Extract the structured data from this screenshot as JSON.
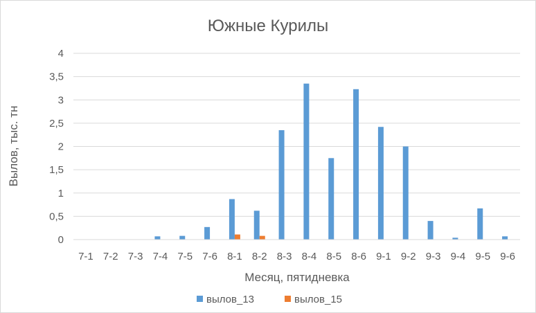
{
  "chart_data": {
    "type": "bar",
    "title": "Южные Курилы",
    "xlabel": "Месяц, пятидневка",
    "ylabel": "Вылов, тыс. тн",
    "ylim": [
      0,
      4
    ],
    "yticks": [
      0,
      0.5,
      1,
      1.5,
      2,
      2.5,
      3,
      3.5,
      4
    ],
    "ytick_labels": [
      "0",
      "0,5",
      "1",
      "1,5",
      "2",
      "2,5",
      "3",
      "3,5",
      "4"
    ],
    "grid": true,
    "legend_position": "bottom",
    "categories": [
      "7-1",
      "7-2",
      "7-3",
      "7-4",
      "7-5",
      "7-6",
      "8-1",
      "8-2",
      "8-3",
      "8-4",
      "8-5",
      "8-6",
      "9-1",
      "9-2",
      "9-3",
      "9-4",
      "9-5",
      "9-6"
    ],
    "series": [
      {
        "name": "вылов_13",
        "color": "#5b9bd5",
        "values": [
          0,
          0,
          0,
          0.07,
          0.08,
          0.27,
          0.87,
          0.62,
          2.35,
          3.35,
          1.75,
          3.23,
          2.42,
          2.0,
          0.4,
          0.04,
          0.67,
          0.07
        ]
      },
      {
        "name": "вылов_15",
        "color": "#ed7d31",
        "values": [
          0,
          0,
          0,
          0,
          0,
          0,
          0.11,
          0.08,
          0,
          0,
          0,
          0,
          0,
          0,
          0,
          0,
          0,
          0
        ]
      }
    ]
  }
}
